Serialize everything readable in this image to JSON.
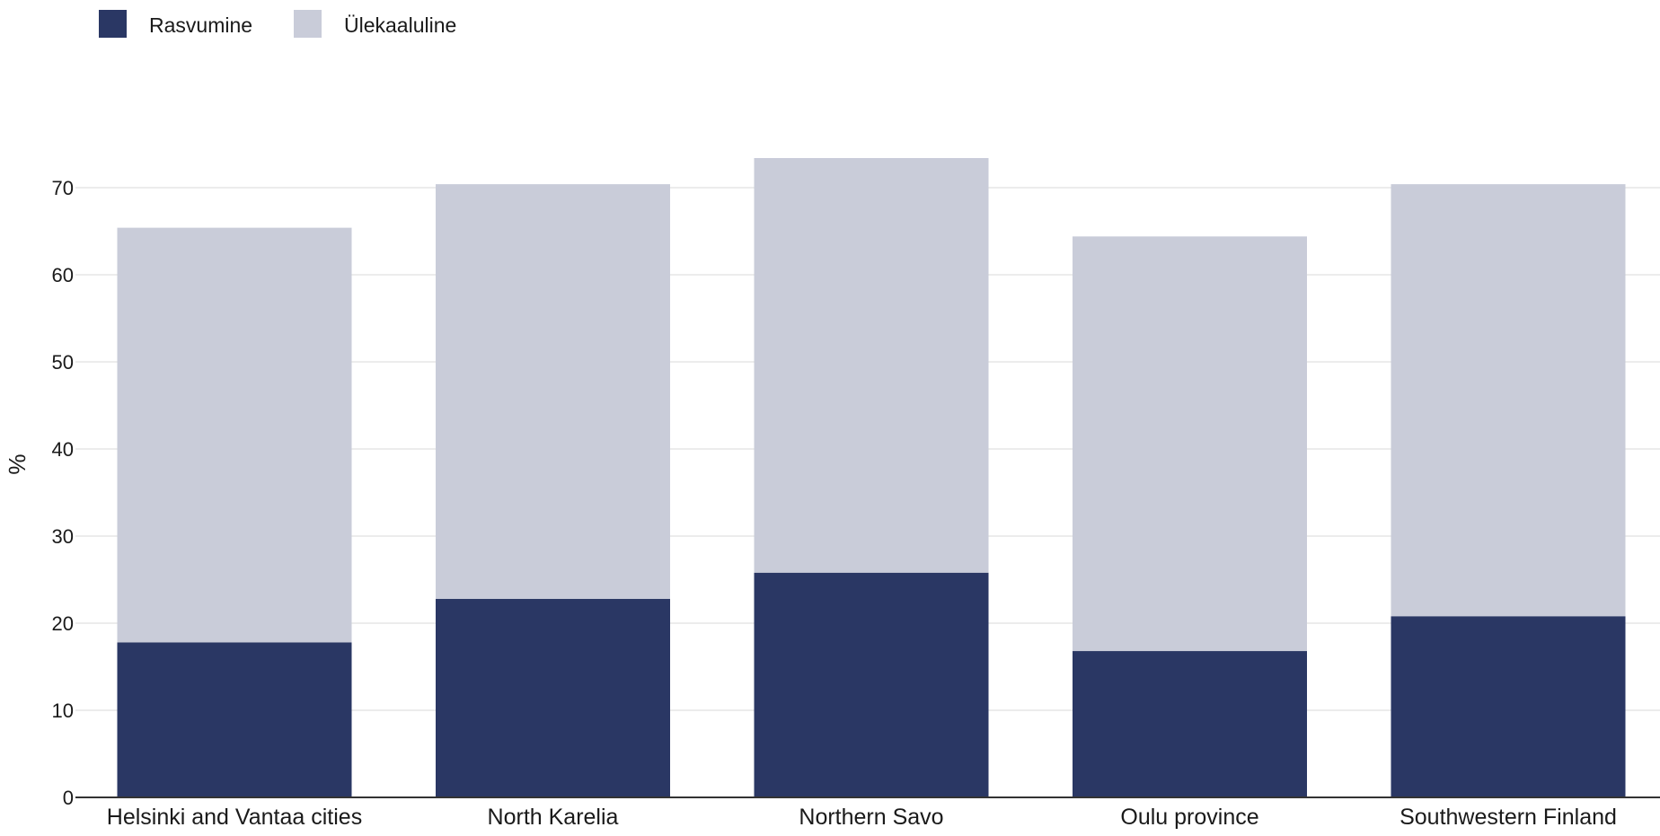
{
  "chart_data": {
    "type": "bar",
    "stacked": true,
    "categories": [
      "Helsinki and Vantaa cities",
      "North Karelia",
      "Northern Savo",
      "Oulu province",
      "Southwestern Finland"
    ],
    "series": [
      {
        "name": "Rasvumine",
        "color": "#2a3764",
        "values": [
          17.8,
          22.8,
          25.8,
          16.8,
          20.8
        ]
      },
      {
        "name": "Ülekaaluline",
        "color": "#c9ccd9",
        "values": [
          47.6,
          47.6,
          47.6,
          47.6,
          49.6
        ]
      }
    ],
    "ylabel": "%",
    "ylim": [
      0,
      76
    ],
    "yticks": [
      0,
      10,
      20,
      30,
      40,
      50,
      60,
      70
    ],
    "grid": true,
    "legend": "top-left"
  }
}
